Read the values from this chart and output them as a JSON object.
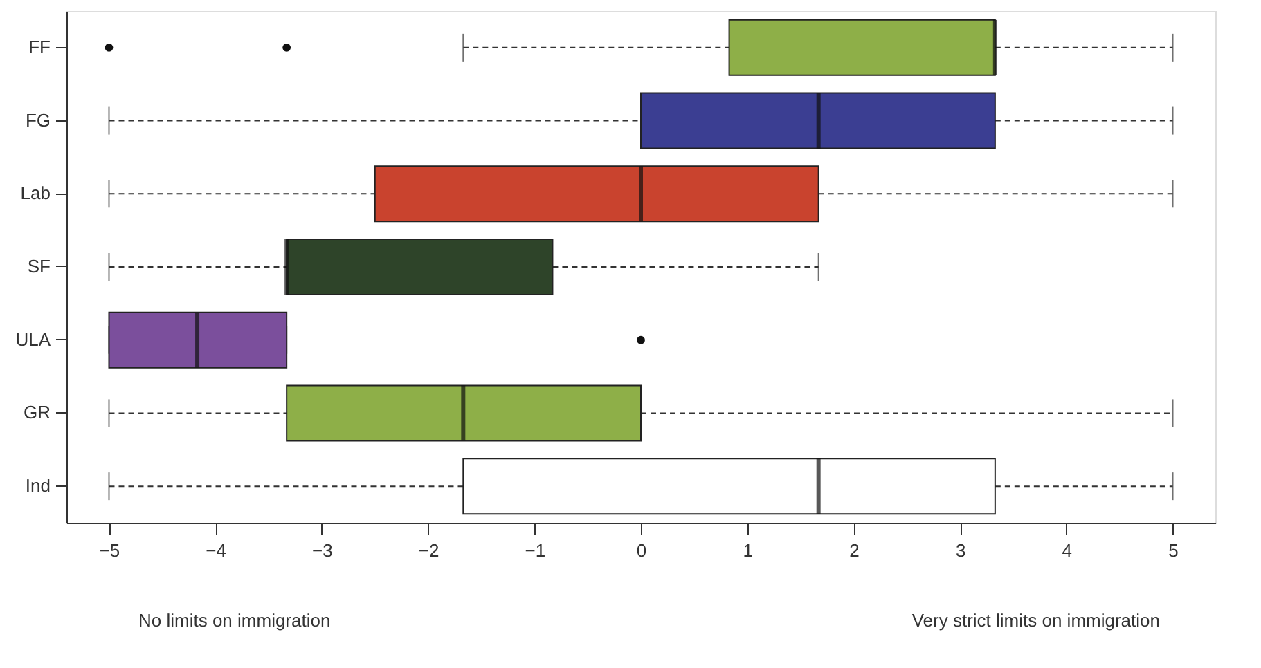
{
  "chart_data": {
    "type": "box",
    "orientation": "horizontal",
    "categories": [
      "FF",
      "FG",
      "Lab",
      "SF",
      "ULA",
      "GR",
      "Ind"
    ],
    "boxes": [
      {
        "low": -1.67,
        "q1": 0.83,
        "median": 3.33,
        "q3": 3.33,
        "high": 5,
        "outliers": [
          -5,
          -3.33
        ]
      },
      {
        "low": -5,
        "q1": 0,
        "median": 1.67,
        "q3": 3.33,
        "high": 5
      },
      {
        "low": -5,
        "q1": -2.5,
        "median": 0,
        "q3": 1.67,
        "high": 5
      },
      {
        "low": -5,
        "q1": -3.33,
        "median": -3.33,
        "q3": -0.83,
        "high": 1.67
      },
      {
        "low": -5,
        "q1": -5,
        "median": -4.17,
        "q3": -3.33,
        "high": -3.33,
        "outliers": [
          0
        ]
      },
      {
        "low": -5,
        "q1": -3.33,
        "median": -1.67,
        "q3": 0,
        "high": 5
      },
      {
        "low": -5,
        "q1": -1.67,
        "median": 1.67,
        "q3": 3.33,
        "high": 5
      }
    ],
    "colors": [
      "#8eaf48",
      "#3b3e92",
      "#c9432e",
      "#2e4429",
      "#7b4f9c",
      "#8eaf48",
      "#ffffff"
    ],
    "xlim": [
      -5.4,
      5.4
    ],
    "xticks": [
      -5,
      -4,
      -3,
      -2,
      -1,
      0,
      1,
      2,
      3,
      4,
      5
    ],
    "grid": false,
    "legend": false,
    "line_style": "dashed",
    "marker": "circle",
    "annotations": [
      "No limits on immigration",
      "Very strict limits on immigration"
    ]
  }
}
